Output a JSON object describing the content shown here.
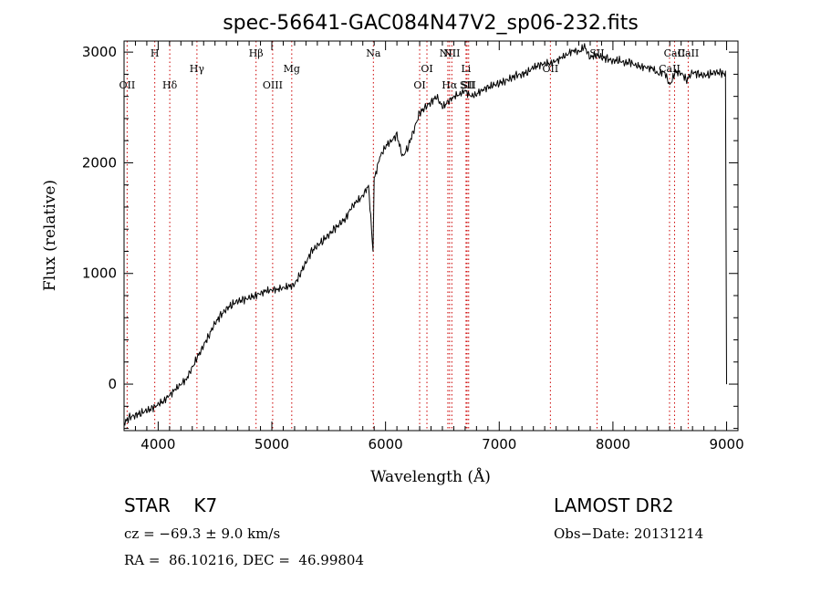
{
  "chart_data": {
    "type": "line",
    "title": "spec-56641-GAC084N47V2_sp06-232.fits",
    "xlabel": "Wavelength (Å)",
    "ylabel": "Flux (relative)",
    "xlim": [
      3700,
      9100
    ],
    "ylim": [
      -420,
      3100
    ],
    "xticks": [
      4000,
      5000,
      6000,
      7000,
      8000,
      9000
    ],
    "yticks": [
      0,
      1000,
      2000,
      3000
    ],
    "grid": false,
    "line_color": "#000000",
    "marker_line_color": "#cc0000",
    "series": [
      {
        "x": [
          3700,
          3750,
          3800,
          3850,
          3900,
          3950,
          4000,
          4050,
          4100,
          4150,
          4200,
          4250,
          4300,
          4350,
          4400,
          4450,
          4500,
          4550,
          4600,
          4650,
          4700,
          4750,
          4800,
          4850,
          4900,
          4950,
          5000,
          5050,
          5100,
          5150,
          5200,
          5250,
          5300,
          5350,
          5400,
          5450,
          5500,
          5550,
          5600,
          5650,
          5700,
          5750,
          5800,
          5850,
          5890,
          5900,
          5950,
          6000,
          6050,
          6100,
          6150,
          6200,
          6250,
          6300,
          6350,
          6400,
          6450,
          6500,
          6550,
          6600,
          6650,
          6700,
          6750,
          6800,
          6850,
          6900,
          6950,
          7000,
          7050,
          7100,
          7150,
          7200,
          7250,
          7300,
          7350,
          7400,
          7450,
          7500,
          7550,
          7600,
          7650,
          7700,
          7750,
          7800,
          7850,
          7900,
          7950,
          8000,
          8050,
          8100,
          8150,
          8200,
          8250,
          8300,
          8350,
          8400,
          8450,
          8500,
          8550,
          8600,
          8650,
          8700,
          8750,
          8800,
          8850,
          8900,
          8950,
          8990,
          9000
        ],
        "y": [
          -350,
          -300,
          -280,
          -260,
          -240,
          -220,
          -180,
          -150,
          -100,
          -50,
          0,
          50,
          150,
          250,
          350,
          450,
          550,
          620,
          680,
          720,
          750,
          760,
          780,
          800,
          820,
          840,
          850,
          860,
          870,
          880,
          900,
          1000,
          1100,
          1200,
          1250,
          1300,
          1350,
          1400,
          1450,
          1500,
          1600,
          1650,
          1700,
          1800,
          1200,
          1850,
          2050,
          2150,
          2200,
          2250,
          2050,
          2150,
          2300,
          2450,
          2500,
          2550,
          2600,
          2500,
          2550,
          2600,
          2620,
          2650,
          2600,
          2620,
          2660,
          2680,
          2700,
          2720,
          2740,
          2760,
          2790,
          2800,
          2820,
          2860,
          2880,
          2900,
          2900,
          2920,
          2950,
          2980,
          3020,
          3000,
          3050,
          2950,
          2980,
          2950,
          2940,
          2920,
          2930,
          2900,
          2910,
          2880,
          2870,
          2860,
          2850,
          2800,
          2830,
          2700,
          2820,
          2810,
          2750,
          2820,
          2800,
          2790,
          2800,
          2820,
          2810,
          2800,
          0
        ]
      }
    ],
    "lines": [
      {
        "x": 3727,
        "label": "OII",
        "row": 3
      },
      {
        "x": 3970,
        "label": "H",
        "row": 1
      },
      {
        "x": 4102,
        "label": "Hδ",
        "row": 3
      },
      {
        "x": 4341,
        "label": "Hγ",
        "row": 2
      },
      {
        "x": 4861,
        "label": "Hβ",
        "row": 1
      },
      {
        "x": 5007,
        "label": "OIII",
        "row": 3
      },
      {
        "x": 5175,
        "label": "Mg",
        "row": 2
      },
      {
        "x": 5893,
        "label": "Na",
        "row": 1
      },
      {
        "x": 6300,
        "label": "OI",
        "row": 3
      },
      {
        "x": 6364,
        "label": "OI",
        "row": 2
      },
      {
        "x": 6548,
        "label": "NII",
        "row": 1
      },
      {
        "x": 6563,
        "label": "Hα",
        "row": 3
      },
      {
        "x": 6583,
        "label": "NII",
        "row": 1
      },
      {
        "x": 6708,
        "label": "Li",
        "row": 2
      },
      {
        "x": 6717,
        "label": "SII",
        "row": 3
      },
      {
        "x": 6731,
        "label": "SII",
        "row": 3
      },
      {
        "x": 7450,
        "label": "OII",
        "row": 2
      },
      {
        "x": 7860,
        "label": "SII",
        "row": 1
      },
      {
        "x": 8498,
        "label": "CaII",
        "row": 2
      },
      {
        "x": 8542,
        "label": "CaII",
        "row": 1
      },
      {
        "x": 8662,
        "label": "CaII",
        "row": 1
      }
    ]
  },
  "info": {
    "class": "STAR    K7",
    "survey": "LAMOST DR2",
    "cz": "cz = −69.3 ± 9.0 km/s",
    "obs_date": "Obs−Date: 20131214",
    "coords": "RA =  86.10216, DEC =  46.99804"
  }
}
